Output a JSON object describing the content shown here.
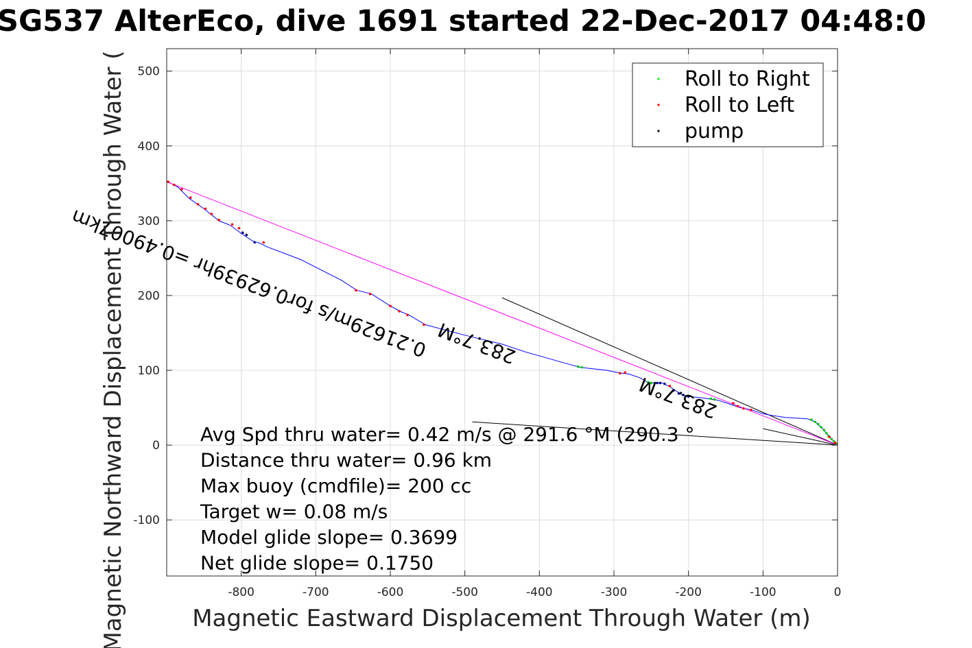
{
  "chart_data": {
    "type": "line",
    "title": "SG537 AlterEco, dive 1691 started 22-Dec-2017 04:48:0",
    "xlabel": "Magnetic Eastward Displacement Through Water (m)",
    "ylabel": "Magnetic Northward Displacement Through Water (",
    "xlim": [
      -900,
      0
    ],
    "ylim": [
      -175,
      530
    ],
    "xticks": [
      -800,
      -700,
      -600,
      -500,
      -400,
      -300,
      -200,
      -100,
      0
    ],
    "yticks": [
      -100,
      0,
      100,
      200,
      300,
      400,
      500
    ],
    "grid": true,
    "legend": {
      "placement": "top-right",
      "entries": [
        {
          "label": "Roll to Right",
          "color": "#00ff00"
        },
        {
          "label": "Roll to Left",
          "color": "#ff0000"
        },
        {
          "label": "pump",
          "color": "#000000"
        }
      ]
    },
    "series": [
      {
        "color": "#0000ff",
        "x": [
          0,
          -10,
          -20,
          -30,
          -40,
          -55,
          -70,
          -90,
          -100,
          -115,
          -130,
          -145,
          -160,
          -180,
          -200,
          -210,
          -225,
          -235,
          -245,
          -255,
          -265,
          -280,
          -295,
          -310,
          -345,
          -360,
          -420,
          -450,
          -500,
          -553,
          -575,
          -585,
          -600,
          -625,
          -645,
          -665,
          -720,
          -765,
          -775,
          -785,
          -800,
          -815,
          -830,
          -850,
          -870,
          -885,
          -900
        ],
        "y": [
          0,
          10,
          22,
          31,
          35,
          36,
          37,
          40,
          42,
          47,
          50,
          55,
          60,
          63,
          65,
          68,
          78,
          83,
          83,
          84,
          90,
          95,
          97,
          100,
          104,
          108,
          125,
          135,
          147,
          161,
          174,
          178,
          186,
          202,
          207,
          220,
          248,
          265,
          270,
          273,
          283,
          294,
          300,
          316,
          330,
          345,
          353
        ]
      },
      {
        "color": "#ff00ff",
        "x": [
          0,
          -900
        ],
        "y": [
          0,
          352
        ]
      }
    ],
    "reference_lines": [
      {
        "x": [
          0,
          -450
        ],
        "y": [
          0,
          197
        ]
      },
      {
        "x": [
          0,
          -490
        ],
        "y": [
          0,
          31
        ]
      },
      {
        "x": [
          0,
          -100
        ],
        "y": [
          0,
          22
        ]
      }
    ],
    "markers": {
      "roll_right": [
        [
          -2,
          2
        ],
        [
          -5,
          5
        ],
        [
          -8,
          8
        ],
        [
          -12,
          12
        ],
        [
          -15,
          16
        ],
        [
          -18,
          20
        ],
        [
          -22,
          24
        ],
        [
          -26,
          28
        ],
        [
          -30,
          31
        ],
        [
          -35,
          34
        ],
        [
          -165,
          61
        ],
        [
          -170,
          62
        ],
        [
          -250,
          83
        ],
        [
          -254,
          84
        ],
        [
          -343,
          104
        ],
        [
          -348,
          105
        ]
      ],
      "roll_left": [
        [
          -3,
          3
        ],
        [
          -11,
          11
        ],
        [
          -116,
          47
        ],
        [
          -126,
          49
        ],
        [
          -134,
          52
        ],
        [
          -140,
          56
        ],
        [
          -225,
          79
        ],
        [
          -285,
          97
        ],
        [
          -292,
          96
        ],
        [
          -555,
          161
        ],
        [
          -577,
          174
        ],
        [
          -588,
          179
        ],
        [
          -600,
          186
        ],
        [
          -627,
          202
        ],
        [
          -646,
          207
        ],
        [
          -770,
          271
        ],
        [
          -803,
          290
        ],
        [
          -812,
          295
        ],
        [
          -830,
          301
        ],
        [
          -840,
          309
        ],
        [
          -848,
          316
        ],
        [
          -858,
          322
        ],
        [
          -868,
          331
        ],
        [
          -880,
          342
        ],
        [
          -890,
          348
        ],
        [
          -898,
          352
        ]
      ],
      "pump": [
        [
          -200,
          65
        ],
        [
          -207,
          67
        ],
        [
          -213,
          69
        ],
        [
          -220,
          73
        ],
        [
          -232,
          82
        ],
        [
          -238,
          83
        ],
        [
          -242,
          83
        ],
        [
          -782,
          271
        ],
        [
          -793,
          281
        ],
        [
          -798,
          284
        ]
      ]
    },
    "rotated_annotations": [
      {
        "text": "0.21629m/s for0.62939hr =0.49007km",
        "x": -550,
        "y": 134,
        "rotate": 201
      },
      {
        "text": "283.7°M",
        "x": -430,
        "y": 125,
        "rotate": 201
      },
      {
        "text": "283.7°M",
        "x": -160,
        "y": 52,
        "rotate": 201
      }
    ],
    "annotations": [
      "Avg Spd thru water=  0.42 m/s @ 291.6 °M (290.3 °",
      "Distance thru water=  0.96 km",
      "Max buoy (cmdfile)= 200 cc",
      "Target w= 0.08 m/s",
      "Model glide slope= 0.3699",
      "Net glide slope= 0.1750"
    ]
  }
}
